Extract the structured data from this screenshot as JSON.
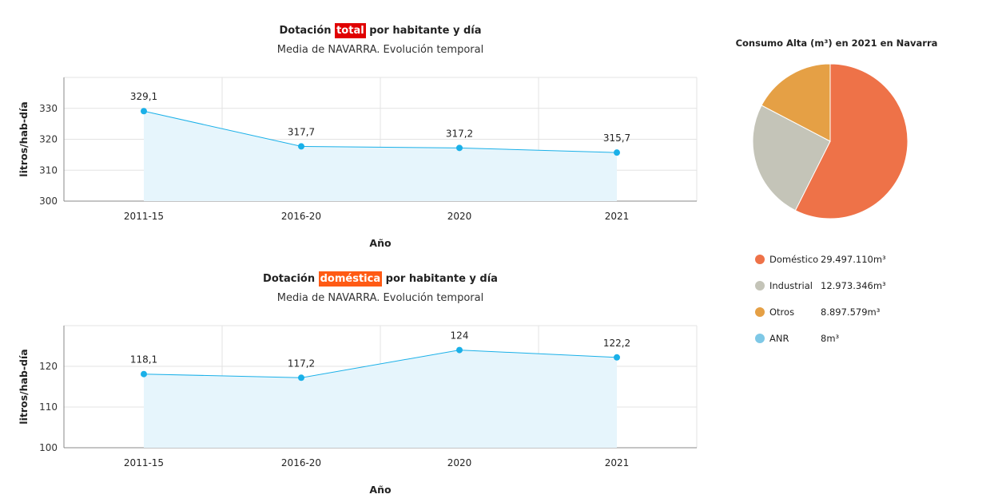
{
  "charts": {
    "total": {
      "title_pre": "Dotación ",
      "title_hl": "total",
      "title_post": " por habitante y día",
      "subtitle": "Media de NAVARRA. Evolución temporal"
    },
    "domestica": {
      "title_pre": "Dotación ",
      "title_hl": "doméstica",
      "title_post": " por habitante y día",
      "subtitle": "Media de NAVARRA. Evolución temporal"
    },
    "pie": {
      "title": "Consumo Alta (m³) en 2021 en Navarra"
    }
  },
  "chart_data": [
    {
      "type": "area",
      "title": "Dotación total por habitante y día",
      "subtitle": "Media de NAVARRA. Evolución temporal",
      "categories": [
        "2011-15",
        "2016-20",
        "2020",
        "2021"
      ],
      "values": [
        329.1,
        317.7,
        317.2,
        315.7
      ],
      "labels": [
        "329,1",
        "317,7",
        "317,2",
        "315,7"
      ],
      "xlabel": "Año",
      "ylabel": "litros/hab-día",
      "ylim": [
        300,
        340
      ],
      "yticks": [
        300,
        310,
        320,
        330
      ],
      "grid": true,
      "color": "#1ab0e8"
    },
    {
      "type": "area",
      "title": "Dotación doméstica por habitante y día",
      "subtitle": "Media de NAVARRA. Evolución temporal",
      "categories": [
        "2011-15",
        "2016-20",
        "2020",
        "2021"
      ],
      "values": [
        118.1,
        117.2,
        124,
        122.2
      ],
      "labels": [
        "118,1",
        "117,2",
        "124",
        "122,2"
      ],
      "xlabel": "Año",
      "ylabel": "litros/hab-día",
      "ylim": [
        100,
        130
      ],
      "yticks": [
        100,
        110,
        120
      ],
      "grid": true,
      "color": "#1ab0e8"
    },
    {
      "type": "pie",
      "title": "Consumo Alta (m³) en 2021 en Navarra",
      "slices": [
        {
          "name": "Doméstico",
          "value": 29497110,
          "label": "29.497.110m³",
          "color": "#ee7248"
        },
        {
          "name": "Industrial",
          "value": 12973346,
          "label": "12.973.346m³",
          "color": "#c4c4b8"
        },
        {
          "name": "Otros",
          "value": 8897579,
          "label": "8.897.579m³",
          "color": "#e5a045"
        },
        {
          "name": "ANR",
          "value": 8,
          "label": "8m³",
          "color": "#7ec8e6"
        }
      ],
      "legend": "bottom"
    }
  ]
}
